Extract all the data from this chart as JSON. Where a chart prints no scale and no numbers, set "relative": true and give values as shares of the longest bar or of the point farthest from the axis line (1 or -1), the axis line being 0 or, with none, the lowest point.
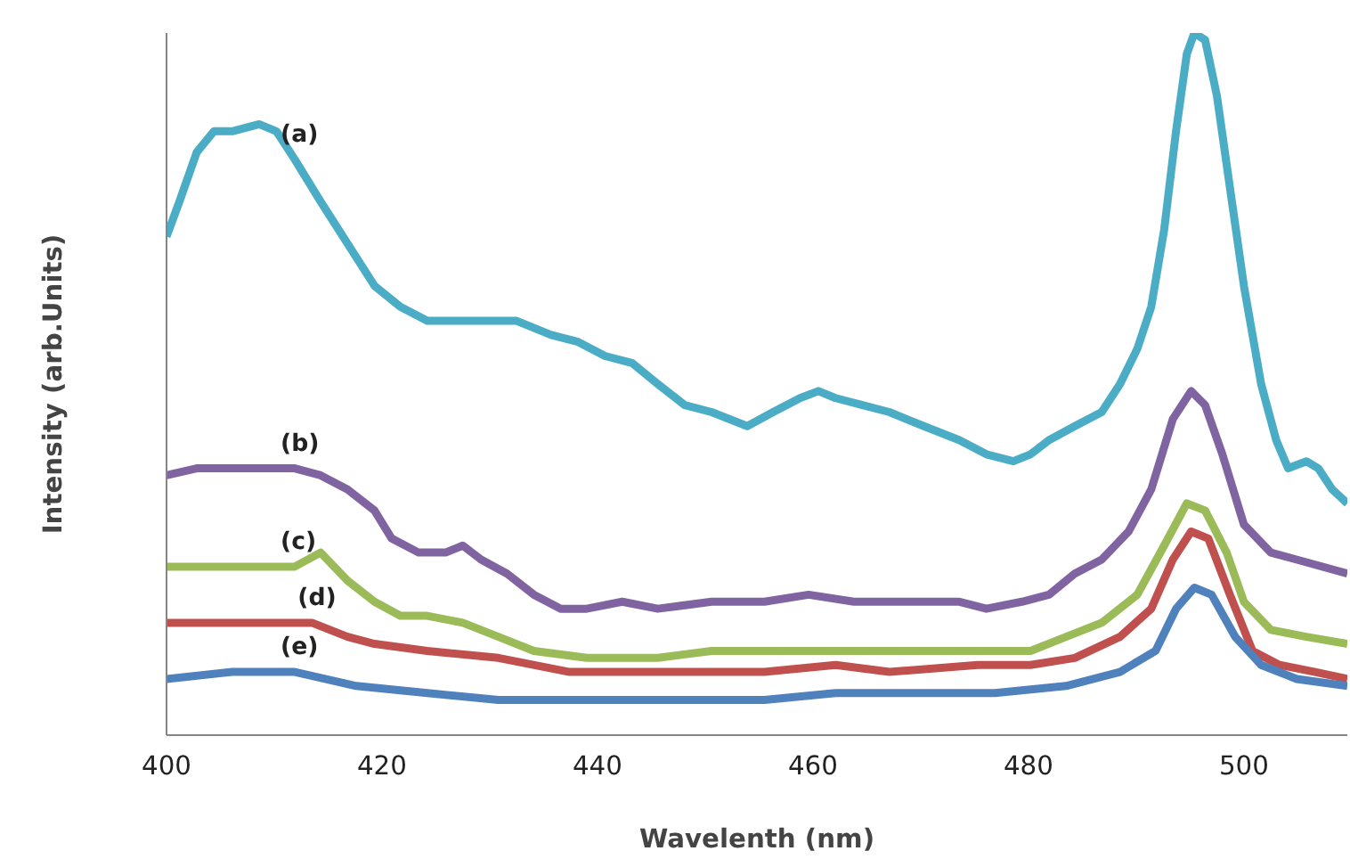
{
  "chart_data": {
    "type": "line",
    "relative": true,
    "xlabel": "Wavelenth (nm)",
    "ylabel": "Intensity (arb.Units)",
    "xlim": [
      400,
      509.6
    ],
    "xticks": [
      400,
      420,
      440,
      460,
      480,
      500
    ],
    "grid": false,
    "marker": "none",
    "line_style": "solid",
    "series": [
      {
        "name": "(a)",
        "color": "#4bacc6",
        "x": [
          400.0,
          401.2,
          402.8,
          404.4,
          406.1,
          408.6,
          410.2,
          411.9,
          414.3,
          416.8,
          419.3,
          421.7,
          424.2,
          426.7,
          429.2,
          432.5,
          435.7,
          438.2,
          440.7,
          443.2,
          445.6,
          448.1,
          450.6,
          453.9,
          456.3,
          458.8,
          460.5,
          462.1,
          464.6,
          467.1,
          470.3,
          473.6,
          476.1,
          478.6,
          480.2,
          481.9,
          484.3,
          486.8,
          488.5,
          490.1,
          491.4,
          492.6,
          493.7,
          494.7,
          495.4,
          496.4,
          497.5,
          498.7,
          500.0,
          501.6,
          503.0,
          504.1,
          505.8,
          506.9,
          508.2,
          509.6
        ],
        "values": [
          0.71,
          0.76,
          0.83,
          0.86,
          0.86,
          0.87,
          0.86,
          0.82,
          0.76,
          0.7,
          0.64,
          0.61,
          0.59,
          0.59,
          0.59,
          0.59,
          0.57,
          0.56,
          0.54,
          0.53,
          0.5,
          0.47,
          0.46,
          0.44,
          0.46,
          0.48,
          0.49,
          0.48,
          0.47,
          0.46,
          0.44,
          0.42,
          0.4,
          0.39,
          0.4,
          0.42,
          0.44,
          0.46,
          0.5,
          0.55,
          0.61,
          0.72,
          0.86,
          0.97,
          1.0,
          0.99,
          0.91,
          0.78,
          0.64,
          0.5,
          0.42,
          0.38,
          0.39,
          0.38,
          0.35,
          0.33
        ]
      },
      {
        "name": "(b)",
        "color": "#8064a2",
        "x": [
          400.0,
          402.8,
          406.1,
          409.4,
          411.9,
          414.3,
          416.8,
          419.3,
          420.9,
          423.4,
          425.9,
          427.5,
          429.2,
          431.6,
          434.1,
          436.6,
          439.0,
          442.3,
          445.6,
          450.6,
          455.5,
          459.6,
          463.8,
          468.7,
          473.6,
          476.1,
          479.4,
          481.9,
          484.3,
          486.8,
          489.3,
          491.4,
          493.4,
          495.1,
          496.4,
          498.0,
          500.0,
          502.5,
          504.9,
          509.6
        ],
        "values": [
          0.37,
          0.38,
          0.38,
          0.38,
          0.38,
          0.37,
          0.35,
          0.32,
          0.28,
          0.26,
          0.26,
          0.27,
          0.25,
          0.23,
          0.2,
          0.18,
          0.18,
          0.19,
          0.18,
          0.19,
          0.19,
          0.2,
          0.19,
          0.19,
          0.19,
          0.18,
          0.19,
          0.2,
          0.23,
          0.25,
          0.29,
          0.35,
          0.45,
          0.49,
          0.47,
          0.4,
          0.3,
          0.26,
          0.25,
          0.23
        ]
      },
      {
        "name": "(c)",
        "color": "#9bbb59",
        "x": [
          400.0,
          402.8,
          406.1,
          409.4,
          411.9,
          414.3,
          416.8,
          419.3,
          421.7,
          424.2,
          427.5,
          430.8,
          434.1,
          439.0,
          445.6,
          450.6,
          455.5,
          462.1,
          467.1,
          473.6,
          480.2,
          483.5,
          486.8,
          490.1,
          492.6,
          494.7,
          496.4,
          498.4,
          500.0,
          502.5,
          505.8,
          509.6
        ],
        "values": [
          0.24,
          0.24,
          0.24,
          0.24,
          0.24,
          0.26,
          0.22,
          0.19,
          0.17,
          0.17,
          0.16,
          0.14,
          0.12,
          0.11,
          0.11,
          0.12,
          0.12,
          0.12,
          0.12,
          0.12,
          0.12,
          0.14,
          0.16,
          0.2,
          0.27,
          0.33,
          0.32,
          0.26,
          0.19,
          0.15,
          0.14,
          0.13
        ]
      },
      {
        "name": "(d)",
        "color": "#c0504d",
        "x": [
          400.0,
          404.4,
          409.4,
          413.5,
          416.8,
          419.3,
          424.2,
          430.8,
          437.4,
          447.3,
          455.5,
          462.1,
          467.1,
          475.3,
          480.2,
          484.3,
          488.5,
          491.4,
          493.4,
          495.1,
          496.7,
          498.7,
          500.8,
          503.3,
          506.6,
          509.6
        ],
        "values": [
          0.16,
          0.16,
          0.16,
          0.16,
          0.14,
          0.13,
          0.12,
          0.11,
          0.09,
          0.09,
          0.09,
          0.1,
          0.09,
          0.1,
          0.1,
          0.11,
          0.14,
          0.18,
          0.25,
          0.29,
          0.28,
          0.2,
          0.12,
          0.1,
          0.09,
          0.08
        ]
      },
      {
        "name": "(e)",
        "color": "#4f81bd",
        "x": [
          400.0,
          406.1,
          411.9,
          417.6,
          424.2,
          430.8,
          439.0,
          447.3,
          455.5,
          462.1,
          470.3,
          476.9,
          483.5,
          488.5,
          491.8,
          493.7,
          495.4,
          497.0,
          499.2,
          501.6,
          504.9,
          509.6
        ],
        "values": [
          0.08,
          0.09,
          0.09,
          0.07,
          0.06,
          0.05,
          0.05,
          0.05,
          0.05,
          0.06,
          0.06,
          0.06,
          0.07,
          0.09,
          0.12,
          0.18,
          0.21,
          0.2,
          0.14,
          0.1,
          0.08,
          0.07
        ]
      }
    ]
  }
}
